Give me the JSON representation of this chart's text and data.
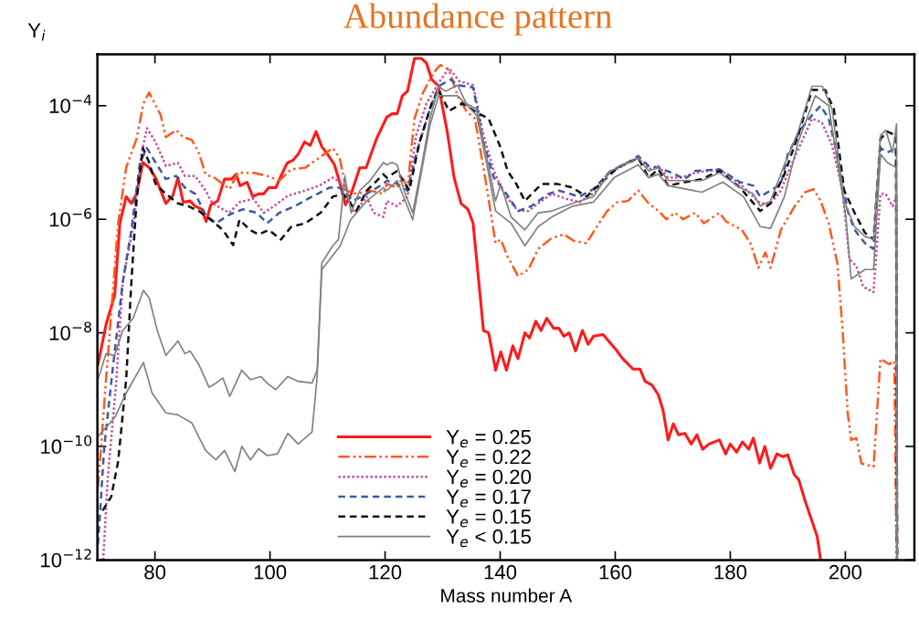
{
  "chart_data": {
    "type": "line",
    "title": "Abundance pattern",
    "xlabel": "Mass number A",
    "ylabel": "Y$_{i}$",
    "log": "y",
    "grid": false,
    "legend": "bottom",
    "marker": "none",
    "xlim": [
      70,
      212
    ],
    "xticks": [
      80,
      100,
      120,
      140,
      160,
      180,
      200
    ],
    "ylim": [
      1e-12,
      0.0008
    ],
    "yticks": [
      {
        "value": 1e-12,
        "label": "10$^{−12}$"
      },
      {
        "value": 1e-10,
        "label": "10$^{−10}$"
      },
      {
        "value": 1e-08,
        "label": "10$^{−8}$"
      },
      {
        "value": 1e-06,
        "label": "10$^{−6}$"
      },
      {
        "value": 0.0001,
        "label": "10$^{−4}$"
      }
    ],
    "series": [
      {
        "name": "Y$_{e}$ = 0.25",
        "color": "#ff1a1a",
        "line_style": "solid",
        "x": [
          70.1,
          71.5,
          73,
          73.9,
          75,
          75.9,
          76.8,
          77.9,
          79,
          80.1,
          81.9,
          83.1,
          84,
          84.9,
          86.1,
          87,
          88.1,
          88.9,
          89.7,
          90.9,
          92.1,
          93.3,
          94.1,
          94.8,
          96,
          97,
          98,
          98.9,
          99.8,
          101,
          101.9,
          103,
          104,
          104.9,
          106,
          107,
          108,
          109,
          110,
          111.2,
          112.2,
          113.1,
          114.1,
          115.6,
          116.7,
          118.5,
          120.3,
          121.2,
          122.1,
          123,
          123.9,
          125.1,
          126.3,
          127.2,
          128.1,
          129.3,
          130.8,
          132,
          133.2,
          134.4,
          135.3,
          137.1,
          138,
          139.2,
          140.1,
          141.1,
          142.2,
          143.1,
          144.3,
          145.1,
          146.2,
          147.1,
          148.1,
          149.3,
          150.2,
          151.1,
          152,
          153.1,
          154.3,
          155.3,
          156.2,
          157.9,
          160.1,
          161.3,
          163.1,
          164.3,
          165.2,
          166.4,
          167.5,
          168.3,
          169.2,
          170.1,
          171,
          172.1,
          173.2,
          174.2,
          175.2,
          176.3,
          178.1,
          179.2,
          180,
          181.1,
          182.1,
          183.2,
          184,
          185.1,
          186,
          187,
          188.1,
          189.1,
          190,
          191.1,
          191.9,
          193,
          195.1,
          195.7
        ],
        "values": [
          2.8e-09,
          1.4e-08,
          4.6e-08,
          8.5e-07,
          2.5e-06,
          1.9e-06,
          2.8e-06,
          1e-05,
          8.1e-06,
          5.4e-06,
          1.9e-06,
          2.6e-06,
          5.4e-06,
          2e-06,
          2.1e-06,
          1.7e-06,
          1.5e-06,
          9.1e-07,
          1.8e-06,
          2.1e-06,
          5.1e-06,
          5.1e-06,
          6.2e-06,
          3.9e-06,
          4.5e-06,
          2.5e-06,
          2.8e-06,
          2.8e-06,
          3.6e-06,
          3.6e-06,
          5.8e-06,
          9.8e-06,
          1.1e-05,
          1.4e-05,
          2.3e-05,
          2e-05,
          3.5e-05,
          1.9e-05,
          1.4e-05,
          9.1e-06,
          4.2e-06,
          1.8e-06,
          2.8e-06,
          8.1e-06,
          8.1e-06,
          2.6e-05,
          6.3e-05,
          7.2e-05,
          7.2e-05,
          0.00015,
          0.00018,
          0.00068,
          0.00068,
          0.00056,
          0.00029,
          0.00022,
          3.5e-05,
          5.4e-06,
          1.9e-06,
          1.5e-06,
          8.5e-07,
          1.1e-08,
          1e-08,
          2.2e-09,
          4.6e-09,
          2.2e-09,
          5.9e-09,
          3.5e-09,
          1e-08,
          8.1e-09,
          1.6e-08,
          1.1e-08,
          1.8e-08,
          1.2e-08,
          1.2e-08,
          8.7e-09,
          1e-08,
          4.8e-09,
          1.1e-08,
          6.3e-09,
          8.7e-09,
          9.3e-09,
          5.1e-09,
          3.5e-09,
          2.3e-09,
          2.3e-09,
          1.4e-09,
          1.2e-09,
          8.1e-10,
          4.4e-10,
          1.3e-10,
          2.5e-10,
          1.6e-10,
          1.7e-10,
          1.1e-10,
          1.6e-10,
          8.9e-11,
          1.1e-10,
          1.3e-10,
          7.4e-11,
          1.1e-10,
          7.9e-11,
          1.2e-10,
          8.9e-11,
          1.4e-10,
          5.1e-11,
          1e-10,
          4.1e-11,
          7.4e-11,
          6.6e-11,
          7.1e-11,
          3.2e-11,
          2.6e-11,
          1.1e-11,
          2.6e-12,
          1e-12
        ]
      },
      {
        "name": "Y$_{e}$ = 0.22",
        "color": "#ff5a1f",
        "line_style": "dashdot",
        "x": [
          70.1,
          71.5,
          73.6,
          75,
          76.8,
          78,
          79,
          81,
          81.9,
          83.7,
          84.9,
          86.4,
          87.6,
          88.8,
          90.3,
          91.8,
          93,
          94.4,
          97.1,
          99.5,
          101.6,
          103.7,
          106.1,
          108.5,
          110.9,
          112.1,
          113.3,
          115,
          117.4,
          119.7,
          120.3,
          122.1,
          123,
          123.9,
          125.1,
          126.6,
          128.4,
          129.6,
          131.1,
          132.6,
          134.1,
          135.6,
          137.4,
          139.2,
          140.1,
          141.3,
          143.1,
          144.9,
          146.6,
          149,
          151.1,
          152.9,
          155,
          156.8,
          158.6,
          160.4,
          162.2,
          164,
          165.8,
          167.5,
          168.9,
          170.4,
          171.8,
          173.9,
          175.4,
          178.1,
          179.3,
          182,
          183.5,
          184.9,
          186.1,
          187,
          188.8,
          191.2,
          193,
          194.5,
          195.7,
          197.1,
          198.6,
          199.5,
          200.4,
          201,
          201.9,
          202.8,
          204.9,
          206.1,
          207.6,
          208.5,
          208.9
        ],
        "values": [
          1.9e-11,
          1.5e-09,
          8.5e-07,
          8.1e-06,
          2.6e-05,
          0.00011,
          0.00017,
          6.8e-05,
          2.8e-05,
          3.7e-05,
          2.8e-05,
          2.5e-05,
          1.5e-05,
          6.2e-06,
          5.4e-06,
          4.2e-06,
          3.4e-06,
          6.6e-06,
          6.6e-06,
          5.8e-06,
          4.8e-06,
          7.6e-06,
          8.1e-06,
          1.2e-05,
          1.8e-05,
          1.2e-05,
          3.2e-06,
          2.8e-06,
          3.2e-06,
          2.8e-06,
          4.2e-06,
          3.6e-06,
          5.4e-06,
          3.6e-06,
          5.9e-05,
          0.00017,
          0.00038,
          0.00052,
          0.00043,
          0.00015,
          8.1e-05,
          5.9e-05,
          5.4e-06,
          3.8e-07,
          4.4e-07,
          2.2e-07,
          1e-07,
          1.3e-07,
          3e-07,
          4.7e-07,
          5.4e-07,
          4.1e-07,
          3.8e-07,
          7.4e-07,
          1.4e-06,
          2e-06,
          2.1e-06,
          3.2e-06,
          1.9e-06,
          1.4e-06,
          1e-06,
          1.3e-06,
          1e-06,
          1.3e-06,
          8.5e-07,
          1.3e-06,
          9.1e-07,
          6.5e-07,
          3.8e-07,
          1.4e-07,
          2.6e-07,
          1.4e-07,
          6.5e-07,
          1.7e-06,
          3e-06,
          3.4e-06,
          2.1e-06,
          8.5e-07,
          1.7e-07,
          1.2e-08,
          3.9e-10,
          1.3e-10,
          1.4e-10,
          5e-11,
          4.4e-11,
          3.5e-09,
          2.8e-09,
          3.2e-09,
          1e-12
        ]
      },
      {
        "name": "Y$_{e}$ = 0.20",
        "color": "#c9509f",
        "line_style": "dotted",
        "x": [
          71,
          71.8,
          73.3,
          74.4,
          76.2,
          77.7,
          78.6,
          80.1,
          81.9,
          84,
          85.2,
          87,
          88.8,
          90,
          92.9,
          94.7,
          97.1,
          98.9,
          100.7,
          103.1,
          106.1,
          108.5,
          110.9,
          112.7,
          114.7,
          116.8,
          118,
          119.7,
          120.3,
          122.1,
          123.9,
          125.4,
          127.2,
          129.3,
          131.1,
          132.9,
          135.3,
          137.1,
          138.9,
          140.7,
          143.1,
          144.9,
          146.6,
          149,
          151.4,
          153.8,
          156.5,
          158.6,
          162.2,
          164,
          165.8,
          167.5,
          169.2,
          171.5,
          173.9,
          178.1,
          181.7,
          183.5,
          185.2,
          187,
          188.8,
          190.6,
          192.4,
          194.2,
          195.9,
          197.7,
          199.5,
          200.7,
          201.9,
          203.1,
          204.9,
          206.1,
          207,
          208.2,
          208.9,
          209
        ],
        "values": [
          1e-12,
          2.8e-11,
          1.5e-09,
          7.8e-08,
          7.4e-07,
          1.5e-05,
          4e-05,
          2.3e-05,
          8.7e-06,
          9.8e-06,
          5.8e-06,
          5.8e-06,
          3.2e-06,
          1.9e-06,
          1.3e-06,
          2e-06,
          2.3e-06,
          1.3e-06,
          1.7e-06,
          2.6e-06,
          3.2e-06,
          3.9e-06,
          5.4e-06,
          4.2e-06,
          1.3e-06,
          2.5e-06,
          1.3e-06,
          1.1e-06,
          2.1e-06,
          1.7e-06,
          2.5e-06,
          3e-05,
          0.00011,
          0.00025,
          0.00046,
          0.00027,
          0.00023,
          3e-05,
          7.1e-06,
          2.8e-06,
          1.4e-06,
          1.4e-06,
          1.9e-06,
          2.8e-06,
          2.3e-06,
          2e-06,
          3e-06,
          6.2e-06,
          9.8e-06,
          1.2e-05,
          7.6e-06,
          8.7e-06,
          5.4e-06,
          5.4e-06,
          6.6e-06,
          7.6e-06,
          4.2e-06,
          2.8e-06,
          1.9e-06,
          1.9e-06,
          3.2e-06,
          9.1e-06,
          2.3e-05,
          5.9e-05,
          5.1e-05,
          2e-05,
          3.2e-06,
          2e-07,
          1.5e-07,
          6.5e-08,
          5.2e-08,
          2.8e-06,
          2.8e-06,
          1.7e-06,
          2.5e-06,
          1e-12
        ]
      },
      {
        "name": "Y$_{e}$ = 0.17",
        "color": "#3c5aa8",
        "line_style": "dashed",
        "x": [
          70.1,
          71.2,
          72.7,
          74.4,
          75.9,
          77.4,
          78.6,
          80.1,
          81.9,
          83.7,
          85.2,
          87,
          88.8,
          90.6,
          92.9,
          95.3,
          97.7,
          99.5,
          101.6,
          104.3,
          107.3,
          110.3,
          112.1,
          114.4,
          116.8,
          119.7,
          120.3,
          122.1,
          123.9,
          125.7,
          127.8,
          129.3,
          131.4,
          132.6,
          135.3,
          137.1,
          138.9,
          140.7,
          143.1,
          145.4,
          148.4,
          150.2,
          153.8,
          156.2,
          159.2,
          162.2,
          164,
          165.8,
          167.5,
          169.8,
          172.1,
          173.9,
          178.1,
          181.7,
          184,
          185.2,
          187,
          188.8,
          190,
          192.4,
          194.2,
          195.7,
          197.1,
          198.9,
          200.4,
          201.6,
          203.4,
          204.9,
          206.1,
          207.3,
          208.8,
          209
        ],
        "values": [
          1.9e-12,
          1e-10,
          2.5e-09,
          7.8e-08,
          6.5e-07,
          1e-05,
          1.8e-05,
          1e-05,
          5.1e-06,
          5.8e-06,
          3.6e-06,
          2.8e-06,
          1.2e-06,
          8.5e-07,
          1.2e-06,
          1.5e-06,
          1.3e-06,
          8.5e-07,
          1.3e-06,
          1.7e-06,
          2.5e-06,
          3.6e-06,
          3.6e-06,
          2.1e-06,
          2.8e-06,
          4.2e-06,
          4.8e-06,
          4.2e-06,
          3.2e-06,
          1.8e-05,
          8.7e-05,
          0.00022,
          0.00029,
          0.00023,
          0.00021,
          2.3e-05,
          5.4e-06,
          3.2e-06,
          1.4e-06,
          1.7e-06,
          2.8e-06,
          3.2e-06,
          2.5e-06,
          3.4e-06,
          7.1e-06,
          1e-05,
          1.3e-05,
          8.7e-06,
          8.1e-06,
          6.6e-06,
          5.1e-06,
          7.1e-06,
          7.6e-06,
          4.5e-06,
          3.9e-06,
          2.5e-06,
          3.2e-06,
          4.2e-06,
          1.4e-05,
          4e-05,
          6.8e-05,
          0.0001,
          5.9e-05,
          1e-05,
          1.4e-06,
          6.5e-07,
          3.8e-07,
          3e-07,
          1.8e-05,
          1.5e-05,
          1.8e-05,
          1e-12
        ]
      },
      {
        "name": "Y$_{e}$ = 0.15",
        "color": "#111111",
        "line_style": "dashed",
        "x": [
          70.9,
          72.4,
          73.6,
          75,
          75.9,
          76.8,
          77.9,
          79,
          80.1,
          81.9,
          84,
          85.8,
          87.6,
          89.7,
          91.8,
          93.6,
          94.7,
          96.5,
          98,
          99.8,
          101.9,
          103.7,
          106.1,
          108.8,
          110.9,
          112.7,
          115,
          116.8,
          119.7,
          120.3,
          122.1,
          124.2,
          126,
          128.1,
          129.3,
          131.1,
          133.5,
          135.9,
          138,
          140.1,
          141.3,
          142.8,
          144.3,
          147.2,
          149.9,
          152.6,
          155,
          158,
          160.4,
          164,
          165.8,
          167.5,
          169.2,
          172.1,
          175.1,
          178.1,
          181.7,
          185.2,
          187,
          189.4,
          191.8,
          194.2,
          196.5,
          198,
          199.8,
          201.6,
          203.4,
          204.9,
          206.1,
          207.3,
          208.8,
          209
        ],
        "values": [
          7.4e-12,
          1.3e-11,
          5.4e-11,
          1.5e-09,
          7.8e-08,
          2.1e-06,
          1.8e-05,
          1e-05,
          4.2e-06,
          2.8e-06,
          1.9e-06,
          1.7e-06,
          1.4e-06,
          9.8e-07,
          6.5e-07,
          3.5e-07,
          9.8e-07,
          6.5e-07,
          5.4e-07,
          6.5e-07,
          4.4e-07,
          7.4e-07,
          8.5e-07,
          1.3e-06,
          2.5e-06,
          2.8e-06,
          1.4e-06,
          3.2e-06,
          6.2e-06,
          5.4e-06,
          7.1e-06,
          3.2e-06,
          2.3e-05,
          0.00011,
          0.00019,
          8.1e-05,
          0.00011,
          7.6e-05,
          5.9e-05,
          1.8e-05,
          7.1e-06,
          4.2e-06,
          2.1e-06,
          4.2e-06,
          4.2e-06,
          3.6e-06,
          2.5e-06,
          4.8e-06,
          8.1e-06,
          1.2e-05,
          5.4e-06,
          7.6e-06,
          3.9e-06,
          4.5e-06,
          5.1e-06,
          7.1e-06,
          3.6e-06,
          1.4e-06,
          1.9e-06,
          6.2e-06,
          3e-05,
          0.00019,
          0.00019,
          8.7e-05,
          3.2e-06,
          1.3e-06,
          5.8e-07,
          4.4e-07,
          2.6e-05,
          3.5e-05,
          3e-05,
          1e-12
        ]
      },
      {
        "name": "Y$_{e}$ < 0.15",
        "color": "#808080",
        "line_style": "solid",
        "x": [
          70.1,
          71.5,
          73,
          74.4,
          76.2,
          78,
          79,
          80.4,
          81.9,
          84,
          85.2,
          86.1,
          87.6,
          89.4,
          90.6,
          91.8,
          93,
          95.1,
          96.6,
          98.4,
          99.5,
          101,
          103.1,
          104.9,
          107.3,
          108.2,
          109,
          110.9,
          111.9,
          113,
          114.1,
          115.6,
          117.4,
          119.7,
          120.3,
          121.2,
          122.1,
          123.3,
          124.8,
          126.3,
          127.8,
          129.3,
          130.5,
          132.6,
          134.1,
          135.9,
          137.7,
          139.2,
          140.1,
          141.9,
          144.3,
          146.6,
          149,
          152.6,
          156.2,
          159.2,
          164,
          165.8,
          167.5,
          169.2,
          172.1,
          175.1,
          178.1,
          181.7,
          184,
          185.2,
          187,
          189.4,
          191.8,
          194.2,
          196,
          197.7,
          199.8,
          201.6,
          203.4,
          204.9,
          206.1,
          207,
          208.2,
          208.9,
          209
        ],
        "values": [
          1.5e-09,
          4.3e-09,
          4e-09,
          1.1e-08,
          1.8e-08,
          5.6e-08,
          4.1e-08,
          1.1e-08,
          4e-09,
          7.2e-09,
          4.3e-09,
          4.8e-09,
          2.8e-09,
          1.1e-09,
          1.3e-09,
          1.6e-09,
          7.6e-10,
          2.2e-09,
          1.5e-09,
          1.7e-09,
          1.3e-09,
          1e-09,
          1.7e-09,
          1.4e-09,
          1.3e-09,
          2.2e-09,
          1.7e-07,
          3.4e-07,
          4.4e-07,
          5.8e-06,
          1.3e-06,
          3.2e-06,
          4.8e-06,
          1e-05,
          9.1e-06,
          1e-05,
          9.1e-06,
          3.2e-06,
          1.3e-06,
          8.1e-06,
          5.9e-05,
          0.00022,
          0.00018,
          0.00023,
          0.00011,
          8.7e-05,
          1.2e-05,
          2.1e-06,
          4.2e-06,
          1.1e-06,
          6.5e-07,
          1.3e-06,
          1.4e-06,
          1.9e-06,
          2.5e-06,
          7.1e-06,
          1.2e-05,
          7.1e-06,
          8.1e-06,
          4.8e-06,
          4.8e-06,
          4.8e-06,
          6.6e-06,
          3.6e-06,
          2.8e-06,
          1.7e-06,
          2.1e-06,
          9.1e-06,
          3.5e-05,
          0.00022,
          0.00022,
          8.7e-05,
          2.1e-06,
          7.4e-07,
          5e-07,
          4.4e-07,
          3e-05,
          3.7e-05,
          1.5e-05,
          4.8e-05,
          1e-12
        ]
      },
      {
        "color": "#808080",
        "line_style": "solid",
        "x": [
          70.1,
          73,
          75,
          78,
          79.5,
          81.9,
          84,
          86.4,
          88.8,
          90.6,
          92.1,
          93.9,
          95.1,
          96.6,
          98,
          99.5,
          101.3,
          103.1,
          104.9,
          107.3,
          108.2,
          109,
          112.2,
          114,
          116.8,
          119.7,
          120.3,
          122.1,
          124.8,
          127.8,
          129.3,
          132.6,
          135.9,
          137.7,
          139.2,
          141.9,
          144.3,
          146.6,
          149,
          152.6,
          156.2,
          159.8,
          164,
          165.8,
          167.5,
          169.2,
          175.1,
          178.7,
          182.3,
          185.2,
          187,
          189.4,
          191.8,
          194.8,
          197.1,
          200.1,
          201,
          203.4,
          204.9,
          206.1,
          207.3,
          208.8,
          209
        ],
        "values": [
          1.5e-10,
          3.2e-10,
          8.7e-10,
          3e-09,
          8.7e-10,
          3.9e-10,
          3.6e-10,
          2.6e-10,
          8.5e-11,
          5.8e-11,
          8.5e-11,
          3.6e-11,
          1e-10,
          5.8e-11,
          9.1e-11,
          6.9e-11,
          7.4e-11,
          1.7e-10,
          1.1e-10,
          1.8e-10,
          1.7e-09,
          1.3e-07,
          3.4e-07,
          9.8e-07,
          2.1e-06,
          3.6e-06,
          3.2e-06,
          4.8e-06,
          9.8e-07,
          4.5e-05,
          0.00015,
          0.00015,
          6.8e-05,
          9.1e-06,
          1.4e-06,
          8.5e-07,
          3.4e-07,
          7.4e-07,
          1.1e-06,
          1.7e-06,
          2e-06,
          5.4e-06,
          9.1e-06,
          5.4e-06,
          6.2e-06,
          3.9e-06,
          3e-06,
          4.5e-06,
          2.5e-06,
          7.4e-07,
          6.9e-07,
          2.5e-06,
          2.3e-05,
          0.00015,
          0.0001,
          1.1e-06,
          8.9e-08,
          1.3e-07,
          1.3e-07,
          1.4e-05,
          1e-05,
          8.1e-06,
          1e-12
        ]
      }
    ]
  }
}
